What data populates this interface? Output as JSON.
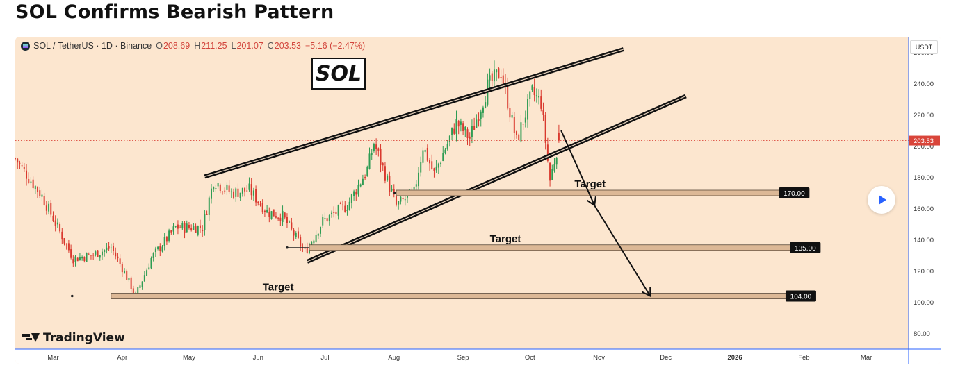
{
  "page_title": "SOL Confirms Bearish Pattern",
  "header": {
    "symbol": "SOL / TetherUS · 1D · Binance",
    "ohlc": [
      {
        "key": "O",
        "value": "208.69"
      },
      {
        "key": "H",
        "value": "211.25"
      },
      {
        "key": "L",
        "value": "201.07"
      },
      {
        "key": "C",
        "value": "203.53"
      }
    ],
    "change": "−5.16 (−2.47%)"
  },
  "sol_label": "SOL",
  "currency_badge": "USDT",
  "brand": "TradingView",
  "colors": {
    "background": "#fce6cf",
    "up": "#2e9c53",
    "down": "#d9392e",
    "channel": "#111111",
    "target_zone": "#dcb896",
    "axis_line": "#2962ff",
    "price_label": "#d9453a"
  },
  "chart_data": {
    "type": "candlestick",
    "title": "SOL Confirms Bearish Pattern",
    "x_axis": {
      "ticks": [
        {
          "label": "Mar",
          "date": "2025-03-01"
        },
        {
          "label": "Apr",
          "date": "2025-04-01"
        },
        {
          "label": "May",
          "date": "2025-05-01"
        },
        {
          "label": "Jun",
          "date": "2025-06-01"
        },
        {
          "label": "Jul",
          "date": "2025-07-01"
        },
        {
          "label": "Aug",
          "date": "2025-08-01"
        },
        {
          "label": "Sep",
          "date": "2025-09-01"
        },
        {
          "label": "Oct",
          "date": "2025-10-01"
        },
        {
          "label": "Nov",
          "date": "2025-11-01"
        },
        {
          "label": "Dec",
          "date": "2025-12-01"
        },
        {
          "label": "2026",
          "date": "2026-01-01",
          "bold": true
        },
        {
          "label": "Feb",
          "date": "2026-02-01"
        },
        {
          "label": "Mar",
          "date": "2026-03-01"
        }
      ],
      "range": [
        "2025-02-12",
        "2026-03-20"
      ]
    },
    "y_axis": {
      "ticks": [
        "80.00",
        "100.00",
        "120.00",
        "140.00",
        "160.00",
        "180.00",
        "200.00",
        "220.00",
        "240.00",
        "260.00"
      ],
      "range": [
        70,
        270
      ],
      "position": "right"
    },
    "last_price": {
      "value": 203.53,
      "label": "203.53"
    },
    "price_path": [
      [
        "2025-02-12",
        192
      ],
      [
        "2025-02-24",
        168
      ],
      [
        "2025-03-04",
        145
      ],
      [
        "2025-03-10",
        128
      ],
      [
        "2025-03-18",
        130
      ],
      [
        "2025-03-27",
        135
      ],
      [
        "2025-04-01",
        122
      ],
      [
        "2025-04-07",
        104
      ],
      [
        "2025-04-14",
        128
      ],
      [
        "2025-04-25",
        148
      ],
      [
        "2025-05-07",
        148
      ],
      [
        "2025-05-12",
        178
      ],
      [
        "2025-05-20",
        170
      ],
      [
        "2025-05-28",
        172
      ],
      [
        "2025-06-05",
        158
      ],
      [
        "2025-06-12",
        155
      ],
      [
        "2025-06-22",
        132
      ],
      [
        "2025-06-30",
        152
      ],
      [
        "2025-07-11",
        162
      ],
      [
        "2025-07-20",
        185
      ],
      [
        "2025-07-23",
        202
      ],
      [
        "2025-08-02",
        162
      ],
      [
        "2025-08-10",
        170
      ],
      [
        "2025-08-14",
        200
      ],
      [
        "2025-08-19",
        182
      ],
      [
        "2025-08-29",
        215
      ],
      [
        "2025-09-04",
        205
      ],
      [
        "2025-09-12",
        238
      ],
      [
        "2025-09-18",
        248
      ],
      [
        "2025-09-25",
        203
      ],
      [
        "2025-10-02",
        234
      ],
      [
        "2025-10-06",
        228
      ],
      [
        "2025-10-10",
        178
      ],
      [
        "2025-10-14",
        203.53
      ]
    ],
    "channel_lines": [
      {
        "name": "upper",
        "points": [
          [
            "2025-05-08",
            180.5
          ],
          [
            "2025-11-12",
            262
          ]
        ]
      },
      {
        "name": "lower",
        "points": [
          [
            "2025-06-23",
            126
          ],
          [
            "2025-12-10",
            232
          ]
        ]
      }
    ],
    "targets": [
      {
        "label": "Target",
        "value": 170.0,
        "price_label": "170.00",
        "start": "2025-08-02",
        "end": "2026-01-22"
      },
      {
        "label": "Target",
        "value": 135.0,
        "price_label": "135.00",
        "start": "2025-06-24",
        "end": "2026-01-27"
      },
      {
        "label": "Target",
        "value": 104.0,
        "price_label": "104.00",
        "start": "2025-03-27",
        "end": "2026-01-25"
      }
    ],
    "projection_arrow": [
      [
        "2025-10-15",
        210
      ],
      [
        "2025-10-30",
        162
      ],
      [
        "2025-11-24",
        104
      ]
    ],
    "grid": false,
    "legend": "none"
  }
}
